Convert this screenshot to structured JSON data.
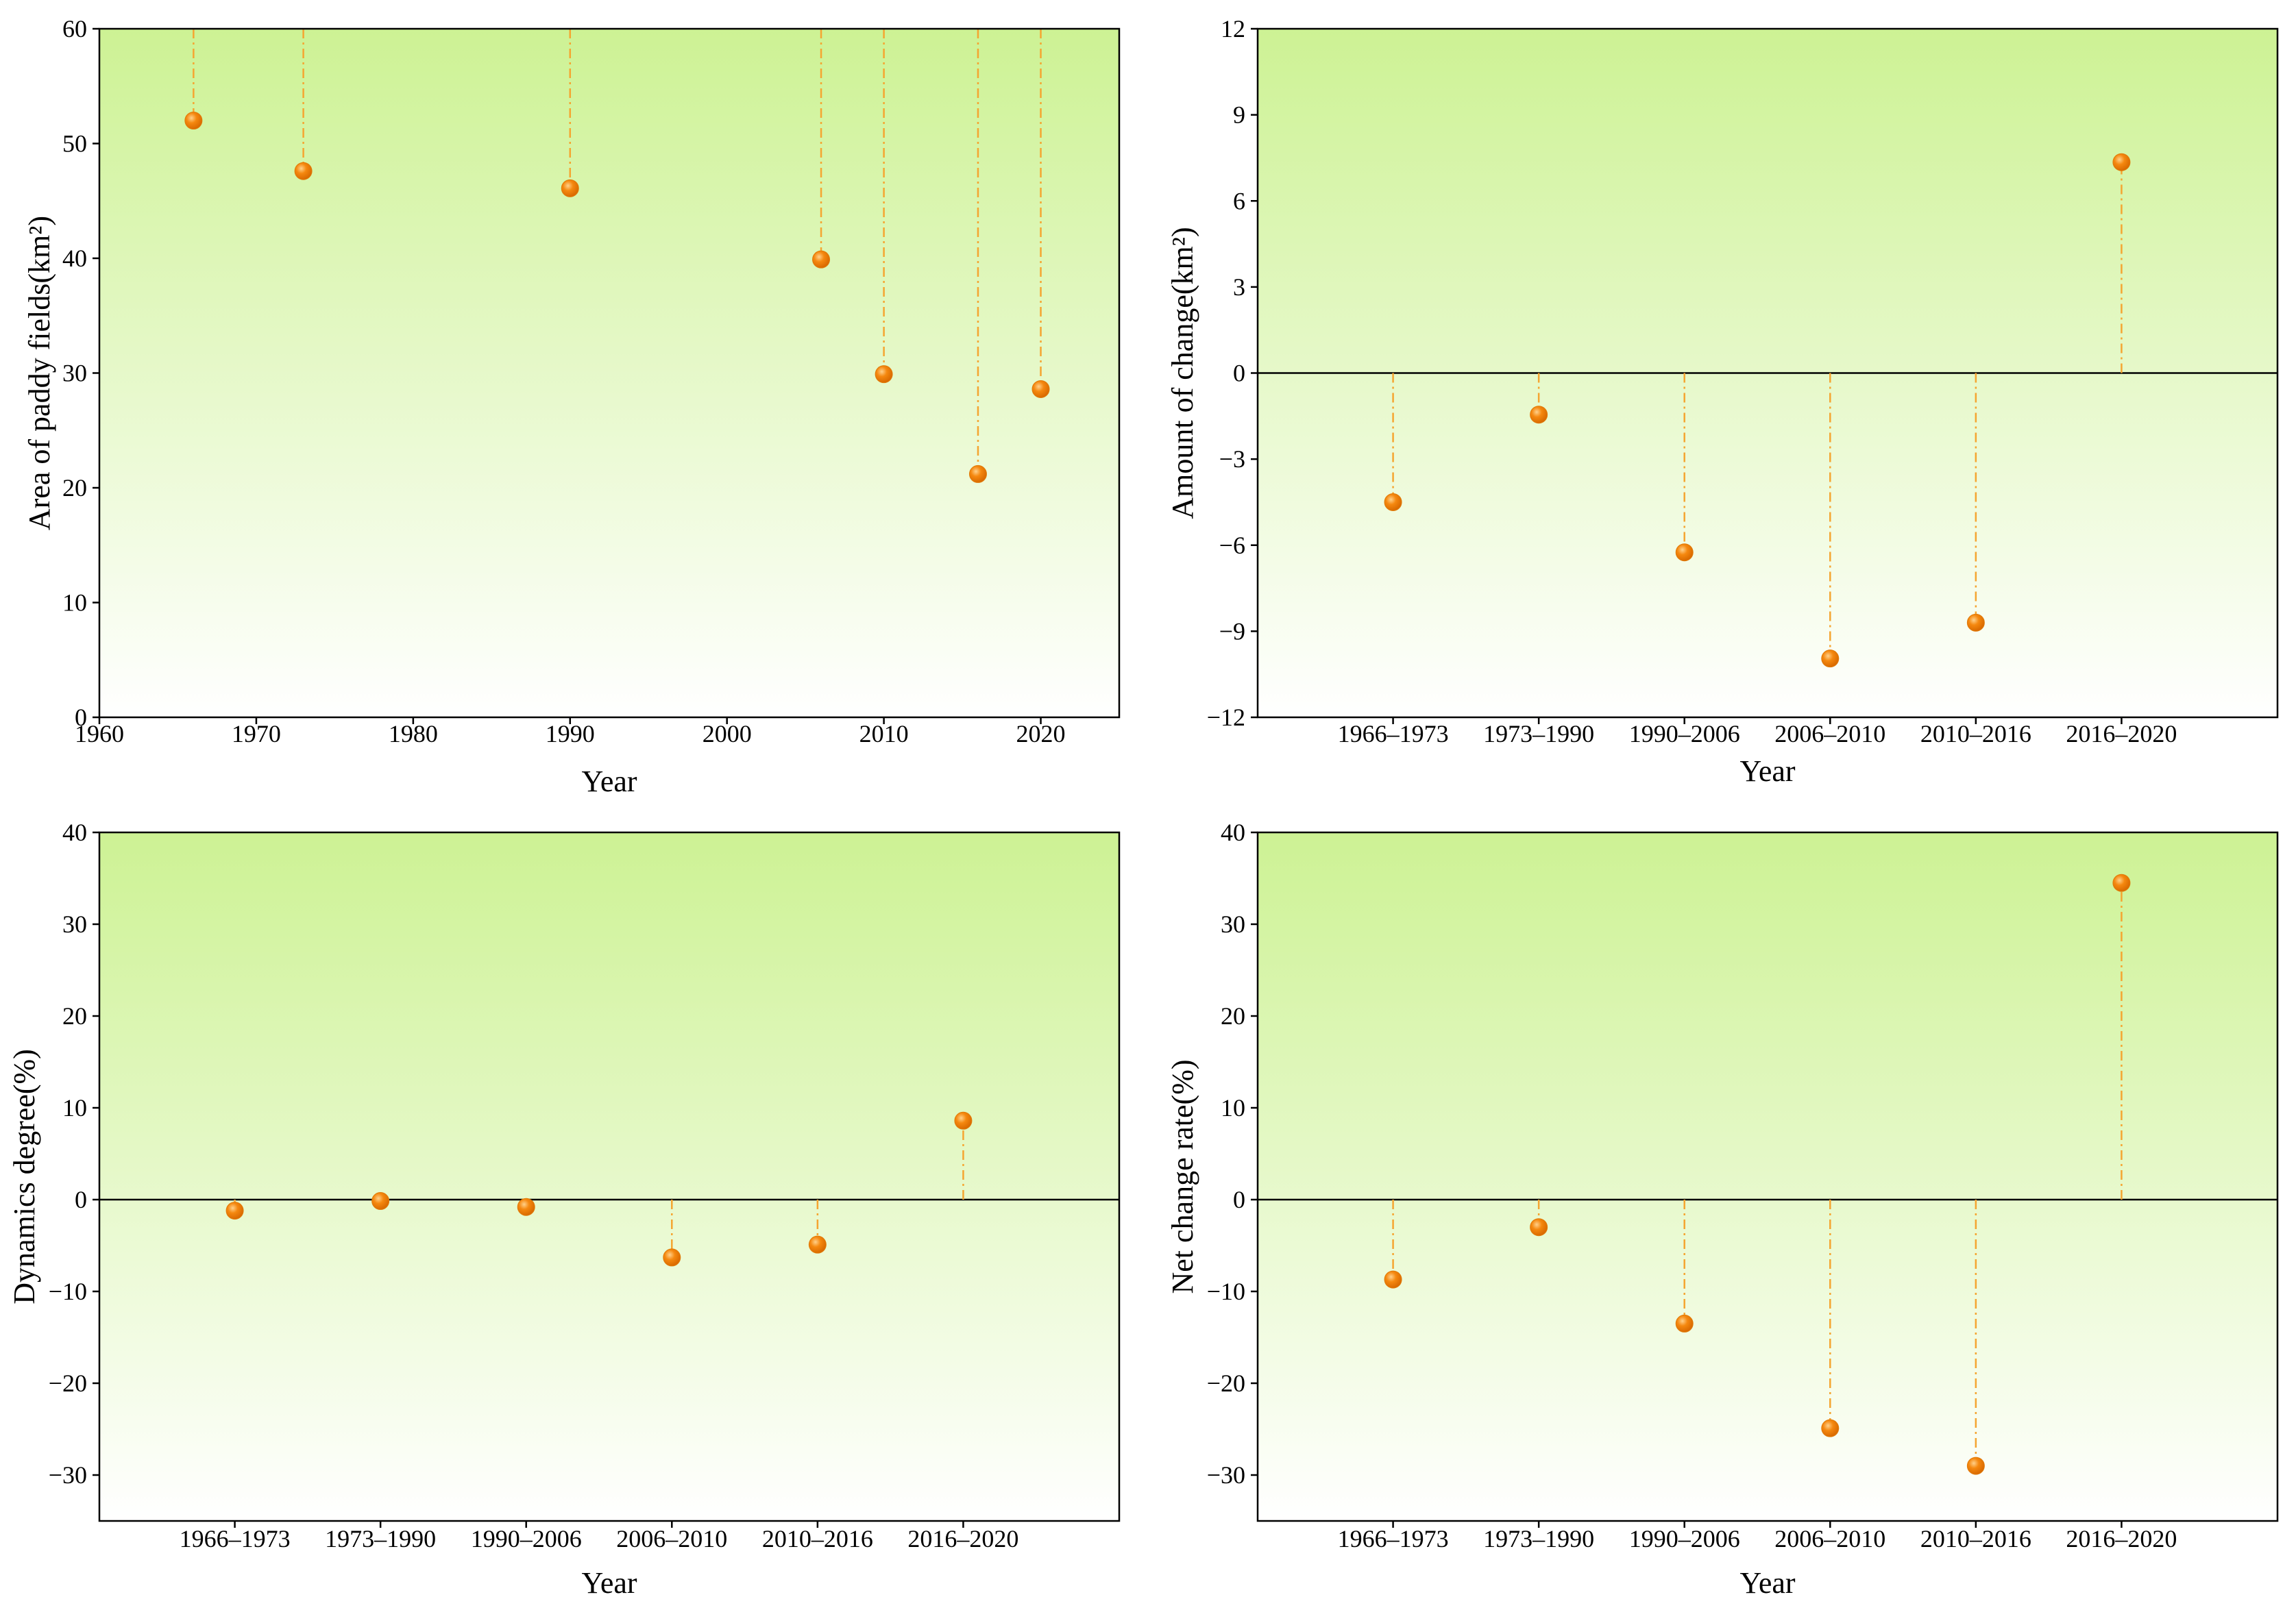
{
  "colors": {
    "gradient_top": "#cdf294",
    "gradient_bottom": "#ffffff",
    "marker": "#f5880f",
    "marker_highlight": "#ffd08a",
    "stem": "#f5a531",
    "axis": "#000000",
    "zero_line": "#000000"
  },
  "chart_data": [
    {
      "id": "area",
      "type": "scatter",
      "xaxis_type": "numeric",
      "x": [
        1966,
        1973,
        1990,
        2006,
        2010,
        2016,
        2020
      ],
      "values": [
        52.0,
        47.6,
        46.1,
        39.9,
        29.9,
        21.2,
        28.6
      ],
      "stem_to": 60,
      "xlim": [
        1960,
        2025
      ],
      "xticks": [
        1960,
        1970,
        1980,
        1990,
        2000,
        2010,
        2020
      ],
      "ylim": [
        0,
        60
      ],
      "yticks": [
        0,
        10,
        20,
        30,
        40,
        50,
        60
      ],
      "zero_line": false,
      "xlabel": "Year",
      "ylabel": "Area of paddy fields(km²)"
    },
    {
      "id": "amount",
      "type": "scatter",
      "xaxis_type": "categorical",
      "categories": [
        "1966–1973",
        "1973–1990",
        "1990–2006",
        "2006–2010",
        "2010–2016",
        "2016–2020"
      ],
      "values": [
        -4.5,
        -1.45,
        -6.25,
        -9.95,
        -8.7,
        7.35
      ],
      "stem_to": 0,
      "ylim": [
        -12,
        12
      ],
      "yticks": [
        -12,
        -9,
        -6,
        -3,
        0,
        3,
        6,
        9,
        12
      ],
      "ytick_labels": [
        "−12",
        "−9",
        "−6",
        "−3",
        "0",
        "3",
        "6",
        "9",
        "12"
      ],
      "zero_line": true,
      "xlabel": "Year",
      "ylabel": "Amount of change(km²)"
    },
    {
      "id": "dynamics",
      "type": "scatter",
      "xaxis_type": "categorical",
      "categories": [
        "1966–1973",
        "1973–1990",
        "1990–2006",
        "2006–2010",
        "2010–2016",
        "2016–2020"
      ],
      "values": [
        -1.2,
        -0.15,
        -0.8,
        -6.3,
        -4.9,
        8.6
      ],
      "stem_to": 0,
      "ylim": [
        -35,
        40
      ],
      "yticks": [
        -30,
        -20,
        -10,
        0,
        10,
        20,
        30,
        40
      ],
      "ytick_labels": [
        "−30",
        "−20",
        "−10",
        "0",
        "10",
        "20",
        "30",
        "40"
      ],
      "zero_line": true,
      "xlabel": "Year",
      "ylabel": "Dynamics degree(%)"
    },
    {
      "id": "netrate",
      "type": "scatter",
      "xaxis_type": "categorical",
      "categories": [
        "1966–1973",
        "1973–1990",
        "1990–2006",
        "2006–2010",
        "2010–2016",
        "2016–2020"
      ],
      "values": [
        -8.7,
        -3.0,
        -13.5,
        -24.9,
        -29.0,
        34.5
      ],
      "stem_to": 0,
      "ylim": [
        -35,
        40
      ],
      "yticks": [
        -30,
        -20,
        -10,
        0,
        10,
        20,
        30,
        40
      ],
      "ytick_labels": [
        "−30",
        "−20",
        "−10",
        "0",
        "10",
        "20",
        "30",
        "40"
      ],
      "zero_line": true,
      "xlabel": "Year",
      "ylabel": "Net change rate(%)"
    }
  ]
}
